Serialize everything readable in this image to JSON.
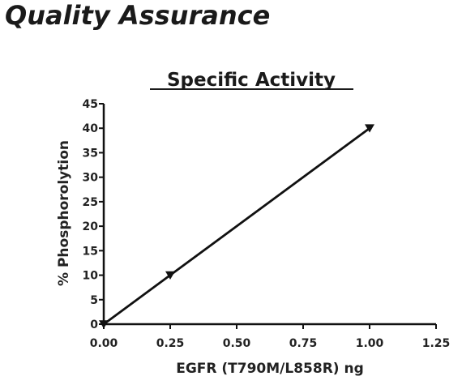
{
  "page": {
    "heading": "Quality Assurance"
  },
  "chart_data": {
    "type": "line",
    "title": "Specific Activity",
    "xlabel": "EGFR (T790M/L858R) ng",
    "ylabel": "% Phosphorolytion",
    "xlim": [
      0,
      1.25
    ],
    "ylim": [
      0,
      45
    ],
    "x_ticks": [
      "0.00",
      "0.25",
      "0.50",
      "0.75",
      "1.00",
      "1.25"
    ],
    "y_ticks": [
      "0",
      "5",
      "10",
      "15",
      "20",
      "25",
      "30",
      "35",
      "40",
      "45"
    ],
    "x": [
      0,
      0.25,
      1.0
    ],
    "series": [
      {
        "values": [
          0,
          10,
          40
        ],
        "marker": "triangle-down",
        "color": "#111111"
      }
    ],
    "grid": false,
    "legend": "none"
  }
}
